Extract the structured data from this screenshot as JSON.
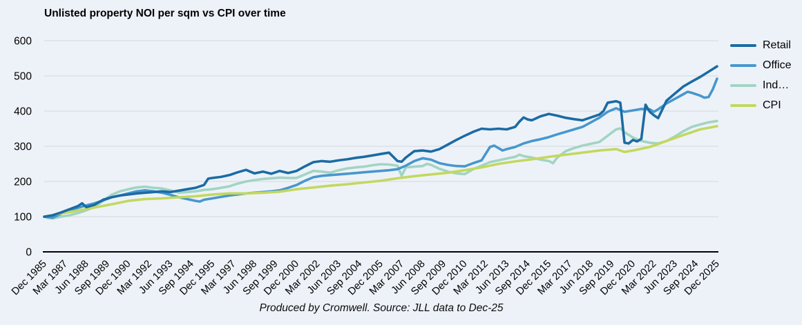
{
  "chart_data": {
    "type": "line",
    "title": "Unlisted property NOI per sqm vs CPI over time",
    "source_note": "Produced by Cromwell. Source: JLL data to Dec-25",
    "grid": true,
    "legend_position": "right",
    "background_color": "#edf2f8",
    "gridline_color": "#d8dde2",
    "axis_color": "#000000",
    "x_axis": {
      "unit": "quarters since Dec 1985",
      "tick_step_quarters": 5,
      "tick_labels": [
        "Dec 1985",
        "Mar 1987",
        "Jun 1988",
        "Sep 1989",
        "Dec 1990",
        "Mar 1992",
        "Jun 1993",
        "Sep 1994",
        "Dec 1995",
        "Mar 1997",
        "Jun 1998",
        "Sep 1999",
        "Dec 2000",
        "Mar 2002",
        "Jun 2003",
        "Sep 2004",
        "Dec 2005",
        "Mar 2007",
        "Jun 2008",
        "Sep 2009",
        "Dec 2010",
        "Mar 2012",
        "Jun 2013",
        "Sep 2014",
        "Dec 2015",
        "Mar 2017",
        "Jun 2018",
        "Sep 2019",
        "Dec 2020",
        "Mar 2022",
        "Jun 2023",
        "Sep 2024",
        "Dec 2025"
      ]
    },
    "y_axis": {
      "min": 0,
      "max": 600,
      "tick_interval": 100,
      "ticks": [
        0,
        100,
        200,
        300,
        400,
        500,
        600
      ]
    },
    "series": [
      {
        "key": "retail",
        "name": "Retail",
        "color": "#1b6ba3",
        "z": 4,
        "points": [
          [
            0,
            100
          ],
          [
            2,
            104
          ],
          [
            4,
            112
          ],
          [
            6,
            121
          ],
          [
            8,
            130
          ],
          [
            9,
            138
          ],
          [
            10,
            127
          ],
          [
            12,
            134
          ],
          [
            14,
            148
          ],
          [
            16,
            155
          ],
          [
            18,
            160
          ],
          [
            20,
            163
          ],
          [
            22,
            166
          ],
          [
            24,
            168
          ],
          [
            26,
            170
          ],
          [
            28,
            172
          ],
          [
            30,
            170
          ],
          [
            32,
            174
          ],
          [
            34,
            178
          ],
          [
            36,
            182
          ],
          [
            38,
            190
          ],
          [
            39,
            208
          ],
          [
            40,
            210
          ],
          [
            42,
            213
          ],
          [
            44,
            218
          ],
          [
            46,
            226
          ],
          [
            48,
            233
          ],
          [
            50,
            223
          ],
          [
            52,
            228
          ],
          [
            54,
            222
          ],
          [
            56,
            230
          ],
          [
            58,
            224
          ],
          [
            60,
            230
          ],
          [
            62,
            243
          ],
          [
            64,
            255
          ],
          [
            66,
            258
          ],
          [
            68,
            256
          ],
          [
            70,
            260
          ],
          [
            72,
            263
          ],
          [
            74,
            267
          ],
          [
            76,
            270
          ],
          [
            78,
            274
          ],
          [
            80,
            278
          ],
          [
            82,
            282
          ],
          [
            84,
            258
          ],
          [
            85,
            256
          ],
          [
            86,
            268
          ],
          [
            88,
            286
          ],
          [
            90,
            288
          ],
          [
            92,
            285
          ],
          [
            94,
            292
          ],
          [
            96,
            305
          ],
          [
            98,
            318
          ],
          [
            100,
            330
          ],
          [
            102,
            341
          ],
          [
            104,
            350
          ],
          [
            106,
            348
          ],
          [
            108,
            350
          ],
          [
            110,
            348
          ],
          [
            112,
            355
          ],
          [
            113,
            370
          ],
          [
            114,
            382
          ],
          [
            115,
            376
          ],
          [
            116,
            374
          ],
          [
            118,
            385
          ],
          [
            120,
            392
          ],
          [
            122,
            387
          ],
          [
            124,
            381
          ],
          [
            126,
            377
          ],
          [
            128,
            374
          ],
          [
            130,
            382
          ],
          [
            132,
            390
          ],
          [
            133,
            400
          ],
          [
            134,
            424
          ],
          [
            136,
            428
          ],
          [
            137,
            424
          ],
          [
            138,
            310
          ],
          [
            139,
            308
          ],
          [
            140,
            318
          ],
          [
            141,
            314
          ],
          [
            142,
            321
          ],
          [
            143,
            418
          ],
          [
            144,
            398
          ],
          [
            145,
            388
          ],
          [
            146,
            380
          ],
          [
            147,
            405
          ],
          [
            148,
            430
          ],
          [
            150,
            450
          ],
          [
            152,
            470
          ],
          [
            154,
            484
          ],
          [
            156,
            497
          ],
          [
            158,
            512
          ],
          [
            160,
            527
          ]
        ]
      },
      {
        "key": "office",
        "name": "Office",
        "color": "#4697ce",
        "z": 2,
        "points": [
          [
            0,
            100
          ],
          [
            2,
            97
          ],
          [
            4,
            108
          ],
          [
            6,
            118
          ],
          [
            8,
            125
          ],
          [
            10,
            132
          ],
          [
            12,
            138
          ],
          [
            14,
            146
          ],
          [
            16,
            155
          ],
          [
            18,
            160
          ],
          [
            20,
            166
          ],
          [
            22,
            172
          ],
          [
            24,
            175
          ],
          [
            26,
            172
          ],
          [
            28,
            168
          ],
          [
            30,
            162
          ],
          [
            32,
            155
          ],
          [
            34,
            150
          ],
          [
            36,
            145
          ],
          [
            37,
            143
          ],
          [
            38,
            148
          ],
          [
            40,
            152
          ],
          [
            42,
            156
          ],
          [
            44,
            160
          ],
          [
            46,
            163
          ],
          [
            48,
            166
          ],
          [
            50,
            168
          ],
          [
            52,
            170
          ],
          [
            54,
            172
          ],
          [
            56,
            175
          ],
          [
            58,
            182
          ],
          [
            60,
            190
          ],
          [
            62,
            202
          ],
          [
            64,
            212
          ],
          [
            66,
            216
          ],
          [
            68,
            218
          ],
          [
            70,
            220
          ],
          [
            72,
            222
          ],
          [
            74,
            224
          ],
          [
            76,
            226
          ],
          [
            78,
            228
          ],
          [
            80,
            230
          ],
          [
            82,
            232
          ],
          [
            84,
            235
          ],
          [
            86,
            245
          ],
          [
            88,
            258
          ],
          [
            90,
            266
          ],
          [
            92,
            262
          ],
          [
            94,
            252
          ],
          [
            96,
            247
          ],
          [
            98,
            244
          ],
          [
            100,
            243
          ],
          [
            102,
            252
          ],
          [
            104,
            260
          ],
          [
            106,
            298
          ],
          [
            107,
            302
          ],
          [
            108,
            295
          ],
          [
            109,
            288
          ],
          [
            110,
            292
          ],
          [
            112,
            298
          ],
          [
            114,
            308
          ],
          [
            116,
            315
          ],
          [
            118,
            320
          ],
          [
            120,
            326
          ],
          [
            122,
            334
          ],
          [
            124,
            341
          ],
          [
            126,
            348
          ],
          [
            128,
            355
          ],
          [
            130,
            368
          ],
          [
            132,
            381
          ],
          [
            134,
            398
          ],
          [
            136,
            408
          ],
          [
            138,
            398
          ],
          [
            140,
            402
          ],
          [
            142,
            406
          ],
          [
            144,
            405
          ],
          [
            145,
            398
          ],
          [
            146,
            405
          ],
          [
            148,
            422
          ],
          [
            150,
            435
          ],
          [
            152,
            448
          ],
          [
            153,
            455
          ],
          [
            154,
            452
          ],
          [
            156,
            444
          ],
          [
            157,
            438
          ],
          [
            158,
            440
          ],
          [
            159,
            462
          ],
          [
            160,
            492
          ]
        ]
      },
      {
        "key": "industrial",
        "name": "Ind…",
        "color": "#a2d4c3",
        "z": 1,
        "points": [
          [
            0,
            100
          ],
          [
            1,
            96
          ],
          [
            2,
            95
          ],
          [
            4,
            100
          ],
          [
            6,
            104
          ],
          [
            8,
            110
          ],
          [
            10,
            118
          ],
          [
            12,
            128
          ],
          [
            14,
            145
          ],
          [
            16,
            162
          ],
          [
            18,
            172
          ],
          [
            20,
            178
          ],
          [
            22,
            183
          ],
          [
            24,
            185
          ],
          [
            26,
            182
          ],
          [
            28,
            180
          ],
          [
            30,
            175
          ],
          [
            32,
            168
          ],
          [
            34,
            170
          ],
          [
            36,
            172
          ],
          [
            38,
            176
          ],
          [
            40,
            178
          ],
          [
            42,
            182
          ],
          [
            44,
            186
          ],
          [
            46,
            194
          ],
          [
            48,
            200
          ],
          [
            50,
            204
          ],
          [
            52,
            207
          ],
          [
            54,
            209
          ],
          [
            56,
            211
          ],
          [
            58,
            210
          ],
          [
            60,
            210
          ],
          [
            62,
            220
          ],
          [
            64,
            230
          ],
          [
            66,
            228
          ],
          [
            68,
            225
          ],
          [
            70,
            232
          ],
          [
            72,
            237
          ],
          [
            74,
            240
          ],
          [
            76,
            242
          ],
          [
            78,
            246
          ],
          [
            80,
            249
          ],
          [
            82,
            248
          ],
          [
            84,
            245
          ],
          [
            85,
            216
          ],
          [
            86,
            240
          ],
          [
            88,
            242
          ],
          [
            90,
            244
          ],
          [
            91,
            250
          ],
          [
            92,
            247
          ],
          [
            94,
            236
          ],
          [
            96,
            228
          ],
          [
            98,
            223
          ],
          [
            100,
            221
          ],
          [
            102,
            235
          ],
          [
            104,
            245
          ],
          [
            106,
            255
          ],
          [
            108,
            260
          ],
          [
            110,
            265
          ],
          [
            112,
            270
          ],
          [
            113,
            276
          ],
          [
            114,
            272
          ],
          [
            116,
            268
          ],
          [
            118,
            262
          ],
          [
            120,
            258
          ],
          [
            121,
            252
          ],
          [
            122,
            268
          ],
          [
            124,
            286
          ],
          [
            126,
            295
          ],
          [
            128,
            302
          ],
          [
            130,
            307
          ],
          [
            132,
            312
          ],
          [
            134,
            330
          ],
          [
            136,
            348
          ],
          [
            137,
            351
          ],
          [
            138,
            340
          ],
          [
            140,
            325
          ],
          [
            142,
            315
          ],
          [
            144,
            310
          ],
          [
            146,
            308
          ],
          [
            148,
            315
          ],
          [
            150,
            328
          ],
          [
            152,
            343
          ],
          [
            154,
            355
          ],
          [
            156,
            362
          ],
          [
            158,
            368
          ],
          [
            160,
            372
          ]
        ]
      },
      {
        "key": "cpi",
        "name": "CPI",
        "color": "#c3d85e",
        "z": 3,
        "points": [
          [
            0,
            100
          ],
          [
            4,
            109
          ],
          [
            8,
            117
          ],
          [
            12,
            126
          ],
          [
            16,
            135
          ],
          [
            20,
            145
          ],
          [
            24,
            150
          ],
          [
            28,
            152
          ],
          [
            32,
            155
          ],
          [
            36,
            158
          ],
          [
            40,
            163
          ],
          [
            44,
            166
          ],
          [
            48,
            166
          ],
          [
            52,
            168
          ],
          [
            56,
            171
          ],
          [
            60,
            178
          ],
          [
            64,
            183
          ],
          [
            68,
            188
          ],
          [
            72,
            192
          ],
          [
            76,
            197
          ],
          [
            80,
            202
          ],
          [
            84,
            209
          ],
          [
            88,
            215
          ],
          [
            92,
            220
          ],
          [
            96,
            225
          ],
          [
            100,
            232
          ],
          [
            104,
            240
          ],
          [
            108,
            250
          ],
          [
            112,
            257
          ],
          [
            116,
            263
          ],
          [
            120,
            270
          ],
          [
            124,
            276
          ],
          [
            128,
            282
          ],
          [
            132,
            288
          ],
          [
            136,
            292
          ],
          [
            138,
            284
          ],
          [
            140,
            288
          ],
          [
            144,
            298
          ],
          [
            148,
            315
          ],
          [
            152,
            332
          ],
          [
            156,
            348
          ],
          [
            160,
            357
          ]
        ]
      }
    ]
  }
}
